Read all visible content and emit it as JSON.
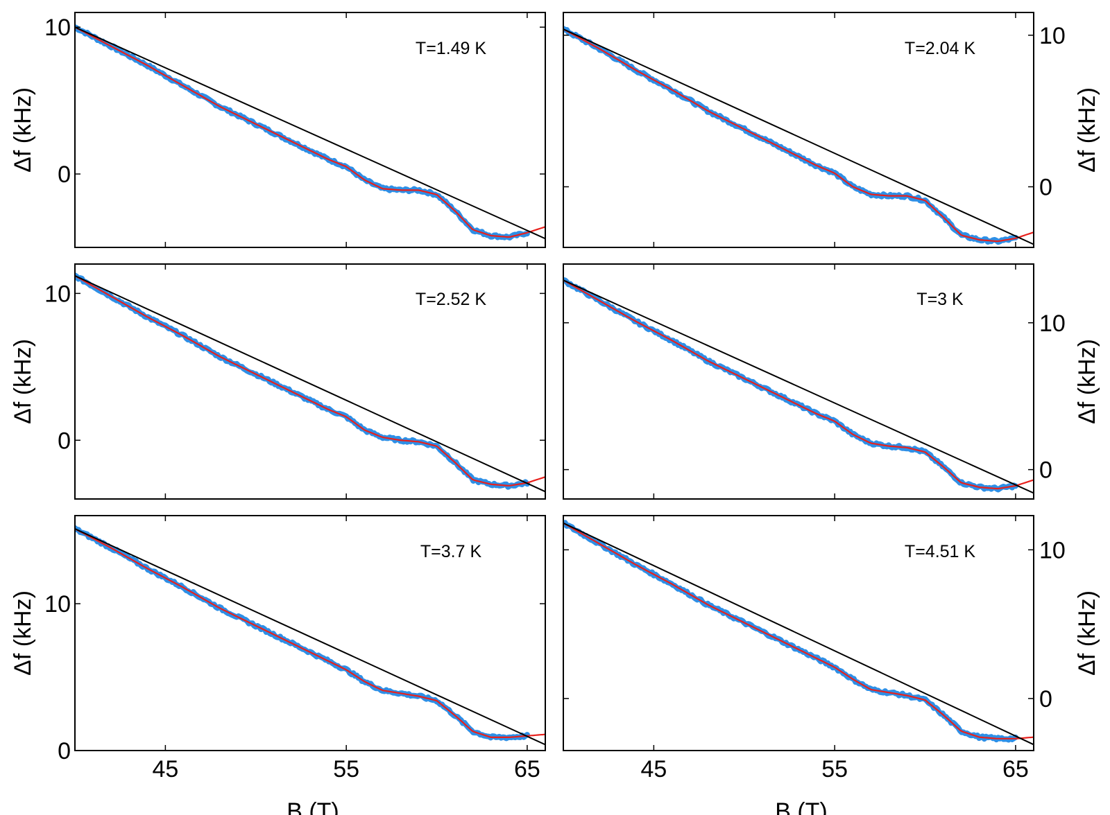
{
  "chart_data": [
    {
      "type": "line",
      "annotation": "T=1.49 K",
      "x_ticks": [
        45,
        55,
        65
      ],
      "x_tick_labels": [],
      "y_ticks": [
        0,
        10
      ],
      "y_tick_labels": [
        "0",
        "10"
      ],
      "xlabel": "",
      "ylabel": "Δf (kHz)",
      "xlim": [
        40,
        66
      ],
      "ylim": [
        -5,
        11
      ],
      "y_axis_side": "left",
      "colors": {
        "data": "#2e8fe6",
        "fit": "#e8201c",
        "background": "#000000"
      },
      "series": [
        {
          "role": "data",
          "x": [
            40,
            42,
            44,
            46,
            48,
            50,
            52,
            54,
            55,
            56,
            57,
            58,
            59,
            60,
            61,
            62,
            63,
            64,
            65
          ],
          "y": [
            10.0,
            8.7,
            7.4,
            6.0,
            4.6,
            3.4,
            2.2,
            1.0,
            0.5,
            -0.4,
            -1.0,
            -1.1,
            -1.1,
            -1.4,
            -2.5,
            -3.8,
            -4.2,
            -4.3,
            -4.0
          ]
        },
        {
          "role": "fit",
          "x": [
            40,
            42,
            44,
            46,
            48,
            50,
            52,
            54,
            55,
            56,
            57,
            58,
            59,
            60,
            61,
            62,
            63,
            64,
            65,
            66
          ],
          "y": [
            10.0,
            8.7,
            7.4,
            6.0,
            4.6,
            3.4,
            2.2,
            1.0,
            0.5,
            -0.4,
            -1.0,
            -1.1,
            -1.1,
            -1.4,
            -2.5,
            -3.8,
            -4.2,
            -4.3,
            -4.0,
            -3.6
          ]
        },
        {
          "role": "background",
          "x": [
            40,
            66
          ],
          "y": [
            10.0,
            -4.4
          ]
        }
      ]
    },
    {
      "type": "line",
      "annotation": "T=2.04 K",
      "x_ticks": [
        45,
        55,
        65
      ],
      "x_tick_labels": [],
      "y_ticks": [
        0,
        10
      ],
      "y_tick_labels": [
        "0",
        "10"
      ],
      "xlabel": "",
      "ylabel": "Δf (kHz)",
      "xlim": [
        40,
        66
      ],
      "ylim": [
        -4,
        11.5
      ],
      "y_axis_side": "right",
      "colors": {
        "data": "#2e8fe6",
        "fit": "#e8201c",
        "background": "#000000"
      },
      "series": [
        {
          "role": "data",
          "x": [
            40,
            42,
            44,
            46,
            48,
            50,
            52,
            54,
            55,
            56,
            57,
            58,
            59,
            60,
            61,
            62,
            63,
            64,
            65
          ],
          "y": [
            10.4,
            9.1,
            7.7,
            6.4,
            5.0,
            3.8,
            2.6,
            1.4,
            0.9,
            0.0,
            -0.5,
            -0.6,
            -0.6,
            -0.9,
            -2.0,
            -3.2,
            -3.5,
            -3.6,
            -3.4
          ]
        },
        {
          "role": "fit",
          "x": [
            40,
            42,
            44,
            46,
            48,
            50,
            52,
            54,
            55,
            56,
            57,
            58,
            59,
            60,
            61,
            62,
            63,
            64,
            65,
            66
          ],
          "y": [
            10.4,
            9.1,
            7.7,
            6.4,
            5.0,
            3.8,
            2.6,
            1.4,
            0.9,
            0.0,
            -0.5,
            -0.6,
            -0.6,
            -0.9,
            -2.0,
            -3.2,
            -3.5,
            -3.6,
            -3.4,
            -3.0
          ]
        },
        {
          "role": "background",
          "x": [
            40,
            66
          ],
          "y": [
            10.4,
            -3.8
          ]
        }
      ]
    },
    {
      "type": "line",
      "annotation": "T=2.52 K",
      "x_ticks": [
        45,
        55,
        65
      ],
      "x_tick_labels": [],
      "y_ticks": [
        0,
        10
      ],
      "y_tick_labels": [
        "0",
        "10"
      ],
      "xlabel": "",
      "ylabel": "Δf (kHz)",
      "xlim": [
        40,
        66
      ],
      "ylim": [
        -4,
        12
      ],
      "y_axis_side": "left",
      "colors": {
        "data": "#2e8fe6",
        "fit": "#e8201c",
        "background": "#000000"
      },
      "series": [
        {
          "role": "data",
          "x": [
            40,
            42,
            44,
            46,
            48,
            50,
            52,
            54,
            55,
            56,
            57,
            58,
            59,
            60,
            61,
            62,
            63,
            64,
            65
          ],
          "y": [
            11.2,
            9.8,
            8.4,
            7.1,
            5.7,
            4.5,
            3.3,
            2.1,
            1.6,
            0.7,
            0.2,
            0.0,
            -0.1,
            -0.4,
            -1.5,
            -2.7,
            -3.0,
            -3.1,
            -2.9
          ]
        },
        {
          "role": "fit",
          "x": [
            40,
            42,
            44,
            46,
            48,
            50,
            52,
            54,
            55,
            56,
            57,
            58,
            59,
            60,
            61,
            62,
            63,
            64,
            65,
            66
          ],
          "y": [
            11.2,
            9.8,
            8.4,
            7.1,
            5.7,
            4.5,
            3.3,
            2.1,
            1.6,
            0.7,
            0.2,
            0.0,
            -0.1,
            -0.4,
            -1.5,
            -2.7,
            -3.0,
            -3.1,
            -2.9,
            -2.5
          ]
        },
        {
          "role": "background",
          "x": [
            40,
            66
          ],
          "y": [
            11.2,
            -3.5
          ]
        }
      ]
    },
    {
      "type": "line",
      "annotation": "T=3 K",
      "x_ticks": [
        45,
        55,
        65
      ],
      "x_tick_labels": [],
      "y_ticks": [
        0,
        10
      ],
      "y_tick_labels": [
        "0",
        "10"
      ],
      "xlabel": "",
      "ylabel": "Δf (kHz)",
      "xlim": [
        40,
        66
      ],
      "ylim": [
        -2,
        14
      ],
      "y_axis_side": "right",
      "colors": {
        "data": "#2e8fe6",
        "fit": "#e8201c",
        "background": "#000000"
      },
      "series": [
        {
          "role": "data",
          "x": [
            40,
            42,
            44,
            46,
            48,
            50,
            52,
            54,
            55,
            56,
            57,
            58,
            59,
            60,
            61,
            62,
            63,
            64,
            65
          ],
          "y": [
            12.9,
            11.5,
            10.1,
            8.8,
            7.4,
            6.2,
            5.0,
            3.8,
            3.3,
            2.4,
            1.8,
            1.6,
            1.5,
            1.2,
            0.2,
            -0.9,
            -1.2,
            -1.3,
            -1.1
          ]
        },
        {
          "role": "fit",
          "x": [
            40,
            42,
            44,
            46,
            48,
            50,
            52,
            54,
            55,
            56,
            57,
            58,
            59,
            60,
            61,
            62,
            63,
            64,
            65,
            66
          ],
          "y": [
            12.9,
            11.5,
            10.1,
            8.8,
            7.4,
            6.2,
            5.0,
            3.8,
            3.3,
            2.4,
            1.8,
            1.6,
            1.5,
            1.2,
            0.2,
            -0.9,
            -1.2,
            -1.3,
            -1.1,
            -0.7
          ]
        },
        {
          "role": "background",
          "x": [
            40,
            66
          ],
          "y": [
            12.9,
            -1.6
          ]
        }
      ]
    },
    {
      "type": "line",
      "annotation": "T=3.7 K",
      "x_ticks": [
        45,
        55,
        65
      ],
      "x_tick_labels": [
        "45",
        "55",
        "65"
      ],
      "y_ticks": [
        0,
        10
      ],
      "y_tick_labels": [
        "0",
        "10"
      ],
      "xlabel": "B (T)",
      "ylabel": "Δf (kHz)",
      "xlim": [
        40,
        66
      ],
      "ylim": [
        0,
        16
      ],
      "y_axis_side": "left",
      "colors": {
        "data": "#2e8fe6",
        "fit": "#e8201c",
        "background": "#000000"
      },
      "series": [
        {
          "role": "data",
          "x": [
            40,
            42,
            44,
            46,
            48,
            50,
            52,
            54,
            55,
            56,
            57,
            58,
            59,
            60,
            61,
            62,
            63,
            64,
            65
          ],
          "y": [
            15.1,
            13.8,
            12.4,
            11.1,
            9.7,
            8.5,
            7.3,
            6.1,
            5.5,
            4.7,
            4.1,
            3.9,
            3.7,
            3.4,
            2.4,
            1.3,
            0.9,
            0.9,
            1.0
          ]
        },
        {
          "role": "fit",
          "x": [
            40,
            42,
            44,
            46,
            48,
            50,
            52,
            54,
            55,
            56,
            57,
            58,
            59,
            60,
            61,
            62,
            63,
            64,
            65,
            66
          ],
          "y": [
            15.1,
            13.8,
            12.4,
            11.1,
            9.7,
            8.5,
            7.3,
            6.1,
            5.5,
            4.7,
            4.1,
            3.9,
            3.7,
            3.4,
            2.4,
            1.3,
            0.9,
            0.9,
            1.0,
            1.1
          ]
        },
        {
          "role": "background",
          "x": [
            40,
            66
          ],
          "y": [
            15.1,
            0.4
          ]
        }
      ]
    },
    {
      "type": "line",
      "annotation": "T=4.51 K",
      "x_ticks": [
        45,
        55,
        65
      ],
      "x_tick_labels": [
        "45",
        "55",
        "65"
      ],
      "y_ticks": [
        0,
        10
      ],
      "y_tick_labels": [
        "0",
        "10"
      ],
      "xlabel": "B (T)",
      "ylabel": "Δf (kHz)",
      "xlim": [
        40,
        66
      ],
      "ylim": [
        -3.5,
        12.3
      ],
      "y_axis_side": "right",
      "colors": {
        "data": "#2e8fe6",
        "fit": "#e8201c",
        "background": "#000000"
      },
      "series": [
        {
          "role": "data",
          "x": [
            40,
            42,
            44,
            46,
            48,
            50,
            52,
            54,
            55,
            56,
            57,
            58,
            59,
            60,
            61,
            62,
            63,
            64,
            65
          ],
          "y": [
            11.8,
            10.4,
            9.0,
            7.7,
            6.3,
            5.1,
            3.9,
            2.7,
            2.1,
            1.3,
            0.6,
            0.4,
            0.2,
            -0.1,
            -1.1,
            -2.2,
            -2.6,
            -2.7,
            -2.7
          ]
        },
        {
          "role": "fit",
          "x": [
            40,
            42,
            44,
            46,
            48,
            50,
            52,
            54,
            55,
            56,
            57,
            58,
            59,
            60,
            61,
            62,
            63,
            64,
            65,
            66
          ],
          "y": [
            11.8,
            10.4,
            9.0,
            7.7,
            6.3,
            5.1,
            3.9,
            2.7,
            2.1,
            1.3,
            0.6,
            0.4,
            0.2,
            -0.1,
            -1.1,
            -2.2,
            -2.6,
            -2.7,
            -2.7,
            -2.6
          ]
        },
        {
          "role": "background",
          "x": [
            40,
            66
          ],
          "y": [
            11.8,
            -3.1
          ]
        }
      ]
    }
  ]
}
